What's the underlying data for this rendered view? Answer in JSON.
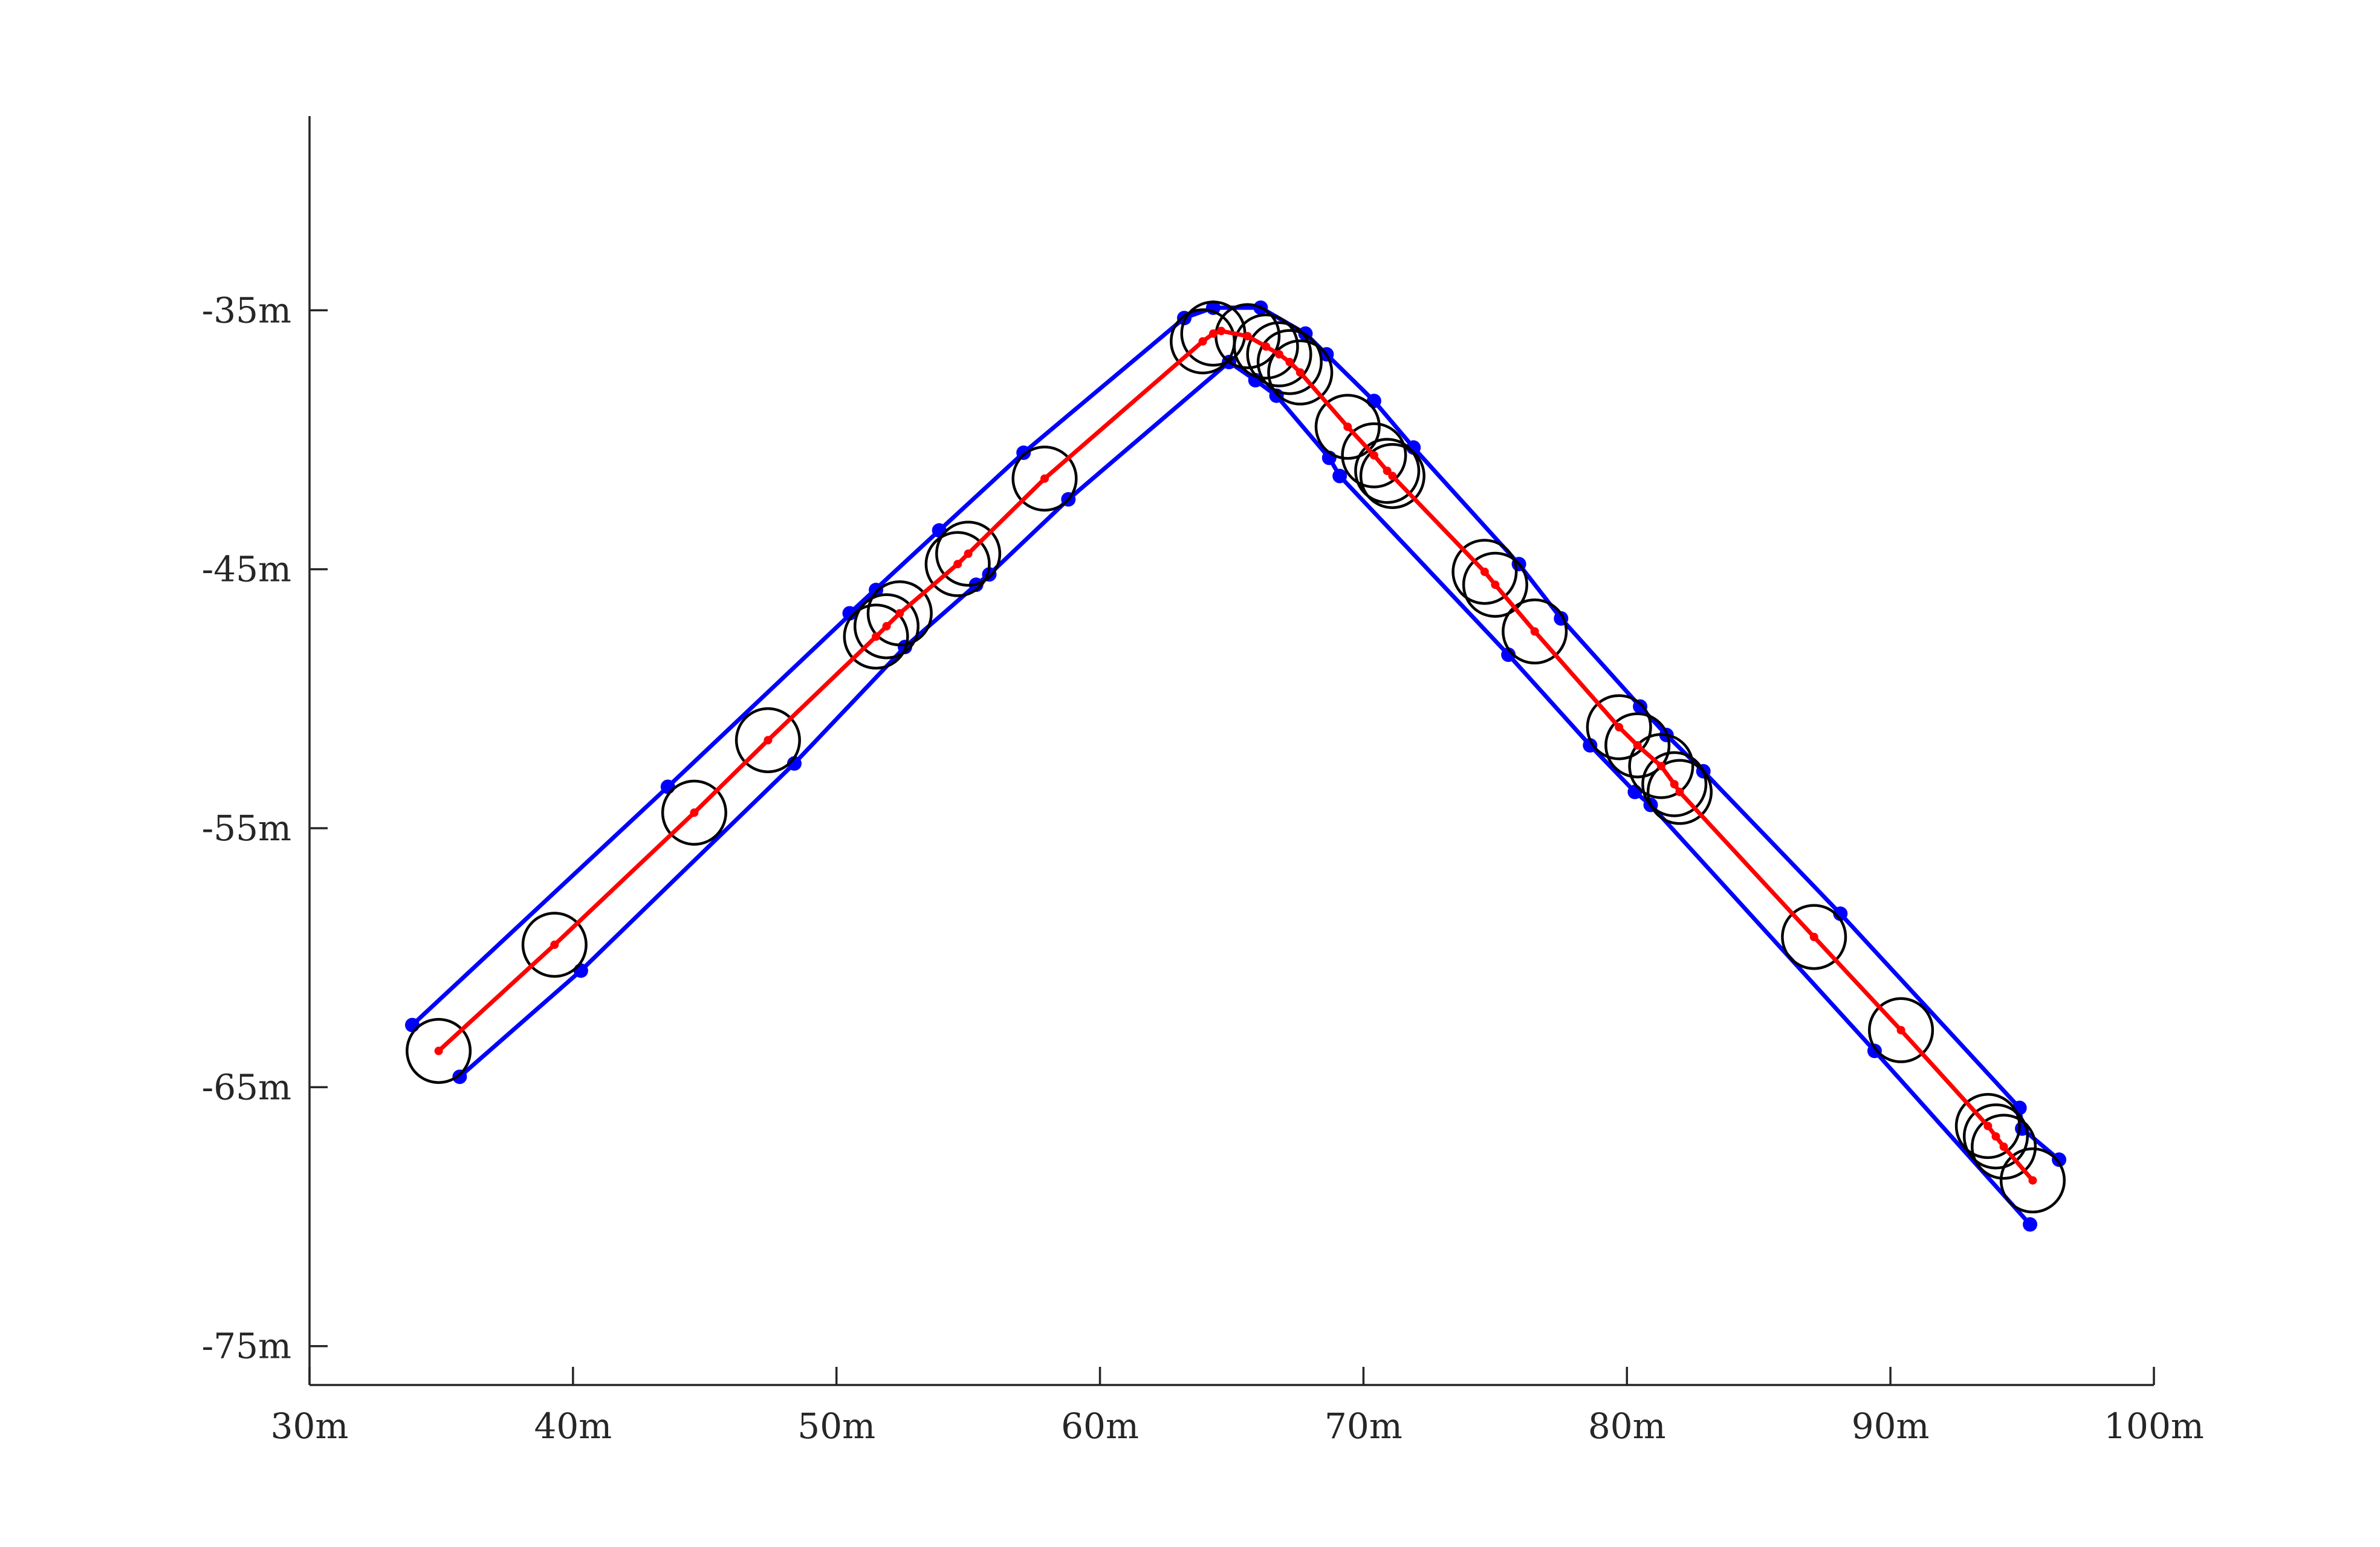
{
  "chart_data": {
    "type": "line",
    "title": "",
    "xlabel": "",
    "ylabel": "",
    "xlim": [
      30,
      100
    ],
    "ylim": [
      -76.5,
      -27.5
    ],
    "grid": false,
    "x_ticks": [
      {
        "value": 30,
        "label": "30m"
      },
      {
        "value": 40,
        "label": "40m"
      },
      {
        "value": 50,
        "label": "50m"
      },
      {
        "value": 60,
        "label": "60m"
      },
      {
        "value": 70,
        "label": "70m"
      },
      {
        "value": 80,
        "label": "80m"
      },
      {
        "value": 90,
        "label": "90m"
      },
      {
        "value": 100,
        "label": "100m"
      }
    ],
    "y_ticks": [
      {
        "value": -35,
        "label": "-35m"
      },
      {
        "value": -45,
        "label": "-45m"
      },
      {
        "value": -55,
        "label": "-55m"
      },
      {
        "value": -65,
        "label": "-65m"
      },
      {
        "value": -75,
        "label": "-75m"
      }
    ],
    "colors": {
      "centerline": "#ff0000",
      "boundary": "#0000ff",
      "circles": "#000000",
      "axis": "#262626"
    },
    "series": [
      {
        "role": "centerline",
        "points": [
          [
            34.9,
            -63.6
          ],
          [
            39.3,
            -59.5
          ],
          [
            44.6,
            -54.4
          ],
          [
            47.4,
            -51.6
          ],
          [
            51.5,
            -47.6
          ],
          [
            51.9,
            -47.2
          ],
          [
            52.4,
            -46.7
          ],
          [
            54.6,
            -44.8
          ],
          [
            55.0,
            -44.4
          ],
          [
            57.9,
            -41.5
          ],
          [
            63.9,
            -36.2
          ],
          [
            64.3,
            -35.9
          ],
          [
            64.6,
            -35.8
          ],
          [
            65.6,
            -36.0
          ],
          [
            66.3,
            -36.4
          ],
          [
            66.8,
            -36.7
          ],
          [
            67.2,
            -37.0
          ],
          [
            67.6,
            -37.4
          ],
          [
            69.4,
            -39.5
          ],
          [
            70.4,
            -40.6
          ],
          [
            70.9,
            -41.2
          ],
          [
            71.1,
            -41.4
          ],
          [
            74.6,
            -45.1
          ],
          [
            75.0,
            -45.6
          ],
          [
            76.5,
            -47.4
          ],
          [
            79.7,
            -51.1
          ],
          [
            80.4,
            -51.8
          ],
          [
            81.3,
            -52.6
          ],
          [
            81.8,
            -53.3
          ],
          [
            82.0,
            -53.6
          ],
          [
            87.1,
            -59.2
          ],
          [
            90.4,
            -62.8
          ],
          [
            93.7,
            -66.5
          ],
          [
            94.0,
            -66.9
          ],
          [
            94.3,
            -67.3
          ],
          [
            95.4,
            -68.6
          ]
        ]
      },
      {
        "role": "left-boundary",
        "points": [
          [
            33.9,
            -62.6
          ],
          [
            43.6,
            -53.4
          ],
          [
            51.5,
            -45.8
          ],
          [
            50.5,
            -46.7
          ],
          [
            53.9,
            -43.5
          ],
          [
            57.1,
            -40.5
          ],
          [
            63.2,
            -35.3
          ],
          [
            64.3,
            -34.9
          ],
          [
            66.1,
            -34.9
          ],
          [
            67.8,
            -35.9
          ],
          [
            68.6,
            -36.7
          ],
          [
            70.4,
            -38.5
          ],
          [
            71.9,
            -40.3
          ],
          [
            75.9,
            -44.8
          ],
          [
            77.5,
            -46.9
          ],
          [
            80.5,
            -50.3
          ],
          [
            81.5,
            -51.4
          ],
          [
            82.9,
            -52.8
          ],
          [
            88.1,
            -58.3
          ],
          [
            94.9,
            -65.8
          ],
          [
            95.0,
            -66.6
          ],
          [
            96.4,
            -67.8
          ]
        ]
      },
      {
        "role": "right-boundary",
        "points": [
          [
            35.7,
            -64.6
          ],
          [
            40.3,
            -60.5
          ],
          [
            48.4,
            -52.5
          ],
          [
            52.6,
            -48.0
          ],
          [
            55.3,
            -45.6
          ],
          [
            55.8,
            -45.2
          ],
          [
            58.8,
            -42.3
          ],
          [
            64.9,
            -37.0
          ],
          [
            65.9,
            -37.7
          ],
          [
            66.7,
            -38.3
          ],
          [
            68.7,
            -40.7
          ],
          [
            69.1,
            -41.4
          ],
          [
            75.5,
            -48.3
          ],
          [
            78.6,
            -51.8
          ],
          [
            80.3,
            -53.6
          ],
          [
            80.9,
            -54.1
          ],
          [
            89.4,
            -63.6
          ],
          [
            95.3,
            -70.3
          ]
        ]
      }
    ],
    "circles": {
      "radius": 1.2,
      "centers": [
        [
          34.9,
          -63.6
        ],
        [
          39.3,
          -59.5
        ],
        [
          44.6,
          -54.4
        ],
        [
          47.4,
          -51.6
        ],
        [
          51.5,
          -47.6
        ],
        [
          51.9,
          -47.2
        ],
        [
          52.4,
          -46.7
        ],
        [
          54.6,
          -44.8
        ],
        [
          55.0,
          -44.4
        ],
        [
          57.9,
          -41.5
        ],
        [
          63.9,
          -36.2
        ],
        [
          64.3,
          -35.9
        ],
        [
          65.6,
          -36.0
        ],
        [
          66.3,
          -36.4
        ],
        [
          66.8,
          -36.7
        ],
        [
          67.2,
          -37.0
        ],
        [
          67.6,
          -37.4
        ],
        [
          69.4,
          -39.5
        ],
        [
          70.4,
          -40.6
        ],
        [
          70.9,
          -41.2
        ],
        [
          71.1,
          -41.4
        ],
        [
          74.6,
          -45.1
        ],
        [
          75.0,
          -45.6
        ],
        [
          76.5,
          -47.4
        ],
        [
          79.7,
          -51.1
        ],
        [
          80.4,
          -51.8
        ],
        [
          81.3,
          -52.6
        ],
        [
          81.8,
          -53.3
        ],
        [
          82.0,
          -53.6
        ],
        [
          87.1,
          -59.2
        ],
        [
          90.4,
          -62.8
        ],
        [
          93.7,
          -66.5
        ],
        [
          94.0,
          -66.9
        ],
        [
          94.3,
          -67.3
        ],
        [
          95.4,
          -68.6
        ]
      ]
    }
  }
}
